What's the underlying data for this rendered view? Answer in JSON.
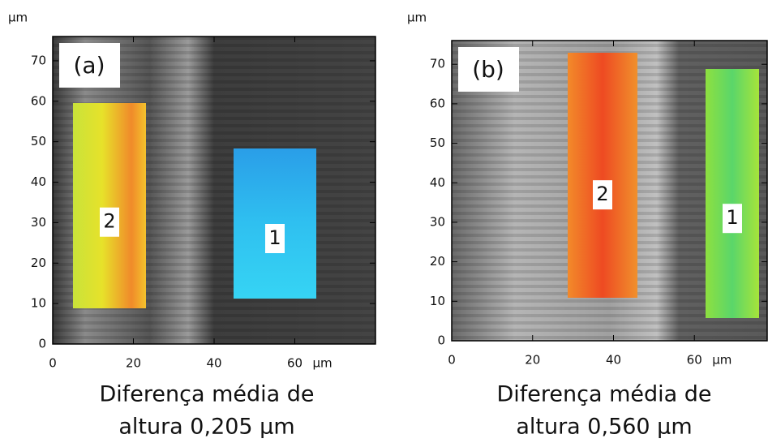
{
  "panels": [
    {
      "label": "(a)",
      "unit": "µm",
      "x_unit": "µm",
      "xlim": [
        0,
        80
      ],
      "ylim": [
        0,
        76
      ],
      "xticks": [
        0,
        20,
        40,
        60
      ],
      "yticks": [
        0,
        10,
        20,
        30,
        40,
        50,
        60,
        70
      ],
      "regions": [
        {
          "label": "2"
        },
        {
          "label": "1"
        }
      ],
      "caption": [
        "Diferença média de",
        "altura 0,205 µm"
      ]
    },
    {
      "label": "(b)",
      "unit": "µm",
      "x_unit": "µm",
      "xlim": [
        0,
        78
      ],
      "ylim": [
        0,
        76
      ],
      "xticks": [
        0,
        20,
        40,
        60
      ],
      "yticks": [
        0,
        10,
        20,
        30,
        40,
        50,
        60,
        70
      ],
      "regions": [
        {
          "label": "2"
        },
        {
          "label": "1"
        }
      ],
      "caption": [
        "Diferença média de",
        "altura 0,560 µm"
      ]
    }
  ]
}
